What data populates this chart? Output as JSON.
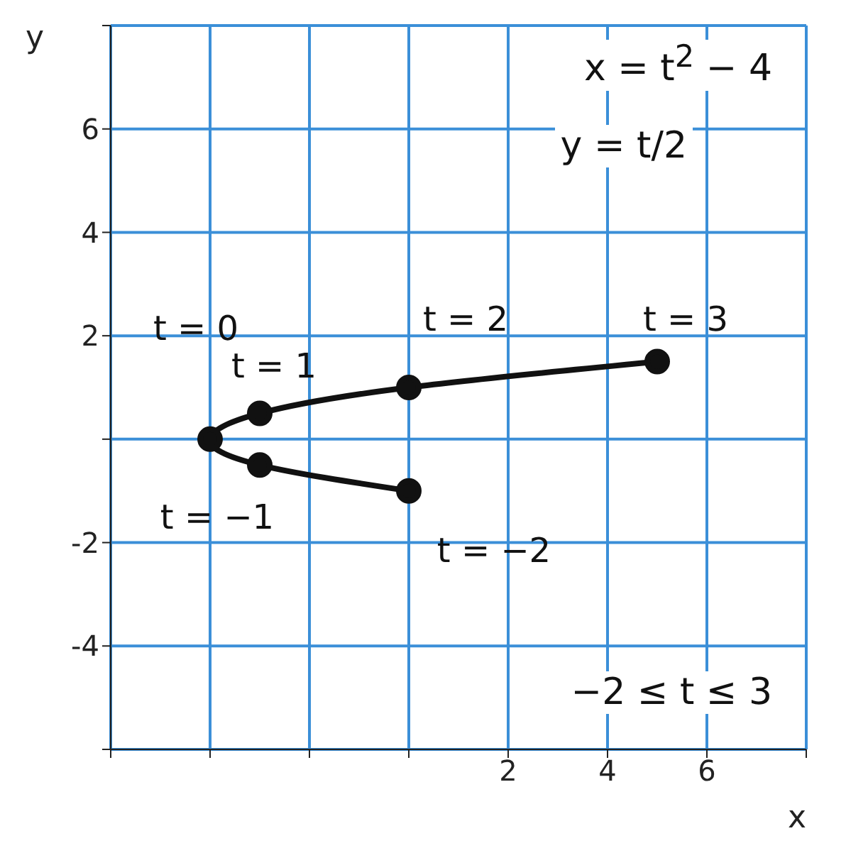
{
  "chart_data": {
    "type": "line",
    "xlabel": "x",
    "ylabel": "y",
    "series": [
      {
        "color": "#111111",
        "x": [
          0,
          -3,
          -4,
          -3,
          0,
          5
        ],
        "values": [
          -1,
          -0.5,
          0,
          0.5,
          1,
          1.5
        ]
      }
    ],
    "xlim": [
      -6,
      8
    ],
    "ylim": [
      -6,
      8
    ],
    "xticks": [
      {
        "value": -6,
        "label": null
      },
      {
        "value": -4,
        "label": null
      },
      {
        "value": -2,
        "label": null
      },
      {
        "value": 0,
        "label": null
      },
      2,
      4,
      6,
      {
        "value": 8,
        "label": null
      }
    ],
    "yticks": [
      {
        "value": -6,
        "label": null
      },
      -4,
      -2,
      {
        "value": 0,
        "label": null
      },
      2,
      4,
      6,
      {
        "value": 8,
        "label": null
      }
    ],
    "grid": true,
    "marker": "circle",
    "line_style": "solid",
    "annotations": [
      {
        "text": "t = 0",
        "x": -4,
        "y": 0
      },
      {
        "text": "t = 1",
        "x": -3,
        "y": 0.5
      },
      {
        "text": "t = 2",
        "x": 0,
        "y": 1
      },
      {
        "text": "t = 3",
        "x": 5,
        "y": 1.5
      },
      {
        "text": "t = −1",
        "x": -3,
        "y": -0.5
      },
      {
        "text": "t = −2",
        "x": 0,
        "y": -1
      },
      "x = t$^{2}$ − 4",
      "y = t/2",
      "−2 ≤ t ≤ 3"
    ]
  }
}
